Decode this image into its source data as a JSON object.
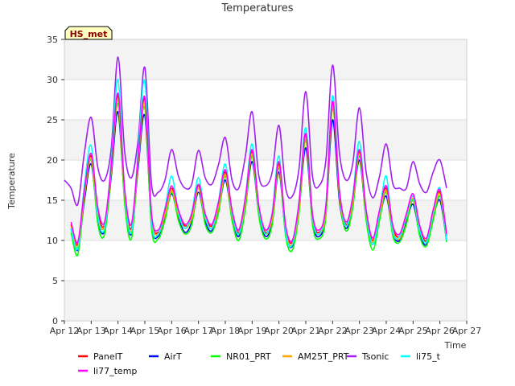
{
  "chart_data": {
    "type": "line",
    "title": "Temperatures",
    "xlabel": "Time",
    "ylabel": "Temperature",
    "site_tag": "HS_met",
    "ylim": [
      0,
      35
    ],
    "yticks": [
      0,
      5,
      10,
      15,
      20,
      25,
      30,
      35
    ],
    "xlim": [
      0,
      15
    ],
    "xticks": [
      {
        "x": 0,
        "label": "Apr 12"
      },
      {
        "x": 1,
        "label": "Apr 13"
      },
      {
        "x": 2,
        "label": "Apr 14"
      },
      {
        "x": 3,
        "label": "Apr 15"
      },
      {
        "x": 4,
        "label": "Apr 16"
      },
      {
        "x": 5,
        "label": "Apr 17"
      },
      {
        "x": 6,
        "label": "Apr 18"
      },
      {
        "x": 7,
        "label": "Apr 19"
      },
      {
        "x": 8,
        "label": "Apr 20"
      },
      {
        "x": 9,
        "label": "Apr 21"
      },
      {
        "x": 10,
        "label": "Apr 22"
      },
      {
        "x": 11,
        "label": "Apr 23"
      },
      {
        "x": 12,
        "label": "Apr 24"
      },
      {
        "x": 13,
        "label": "Apr 25"
      },
      {
        "x": 14,
        "label": "Apr 26"
      },
      {
        "x": 15,
        "label": "Apr 27"
      }
    ],
    "x_units": "days since Apr 12 00:00",
    "grid": true,
    "background_bands": "alternating light gray",
    "legend_placement": "bottom",
    "series": [
      {
        "name": "PanelT",
        "color": "#ff0000",
        "x": [
          0.25,
          0.5,
          0.75,
          1.0,
          1.25,
          1.5,
          1.75,
          2.0,
          2.25,
          2.5,
          2.75,
          3.0,
          3.25,
          3.5,
          3.75,
          4.0,
          4.25,
          4.5,
          4.75,
          5.0,
          5.25,
          5.5,
          5.75,
          6.0,
          6.25,
          6.5,
          6.75,
          7.0,
          7.25,
          7.5,
          7.75,
          8.0,
          8.25,
          8.5,
          8.75,
          9.0,
          9.25,
          9.5,
          9.75,
          10.0,
          10.25,
          10.5,
          10.75,
          11.0,
          11.25,
          11.5,
          11.75,
          12.0,
          12.25,
          12.5,
          12.75,
          13.0,
          13.25,
          13.5,
          13.75,
          14.0,
          14.25
        ],
        "y": [
          12.0,
          9.5,
          16.0,
          20.5,
          13.5,
          12.0,
          19.0,
          28.0,
          16.0,
          11.5,
          20.0,
          27.5,
          13.0,
          11.0,
          13.5,
          16.5,
          13.5,
          11.8,
          13.0,
          16.8,
          13.0,
          11.8,
          14.5,
          18.5,
          13.5,
          11.0,
          15.0,
          21.0,
          14.0,
          11.0,
          13.0,
          19.5,
          11.5,
          9.8,
          14.5,
          23.0,
          13.0,
          11.0,
          14.0,
          27.0,
          16.0,
          12.0,
          15.0,
          21.0,
          13.5,
          10.0,
          13.5,
          16.5,
          11.5,
          10.5,
          13.0,
          15.5,
          11.5,
          10.0,
          13.5,
          16.0,
          10.5
        ]
      },
      {
        "name": "AirT",
        "color": "#0000ff",
        "x": [
          0.25,
          0.5,
          0.75,
          1.0,
          1.25,
          1.5,
          1.75,
          2.0,
          2.25,
          2.5,
          2.75,
          3.0,
          3.25,
          3.5,
          3.75,
          4.0,
          4.25,
          4.5,
          4.75,
          5.0,
          5.25,
          5.5,
          5.75,
          6.0,
          6.25,
          6.5,
          6.75,
          7.0,
          7.25,
          7.5,
          7.75,
          8.0,
          8.25,
          8.5,
          8.75,
          9.0,
          9.25,
          9.5,
          9.75,
          10.0,
          10.25,
          10.5,
          10.75,
          11.0,
          11.25,
          11.5,
          11.75,
          12.0,
          12.25,
          12.5,
          12.75,
          13.0,
          13.25,
          13.5,
          13.75,
          14.0,
          14.25
        ],
        "y": [
          11.5,
          8.8,
          15.0,
          19.5,
          12.5,
          11.2,
          18.0,
          26.0,
          15.0,
          10.8,
          19.0,
          25.5,
          12.0,
          10.5,
          12.8,
          15.8,
          12.8,
          11.0,
          12.3,
          16.0,
          12.3,
          11.2,
          13.8,
          17.5,
          12.8,
          10.5,
          14.3,
          19.8,
          13.3,
          10.5,
          12.3,
          18.5,
          10.8,
          9.3,
          13.8,
          21.5,
          12.3,
          10.5,
          13.3,
          25.0,
          15.0,
          11.5,
          14.3,
          20.0,
          12.8,
          9.5,
          12.8,
          15.5,
          10.8,
          10.0,
          12.3,
          14.5,
          10.8,
          9.5,
          12.8,
          15.0,
          10.0
        ]
      },
      {
        "name": "NR01_PRT",
        "color": "#00ff00",
        "x": [
          0.25,
          0.5,
          0.75,
          1.0,
          1.25,
          1.5,
          1.75,
          2.0,
          2.25,
          2.5,
          2.75,
          3.0,
          3.25,
          3.5,
          3.75,
          4.0,
          4.25,
          4.5,
          4.75,
          5.0,
          5.25,
          5.5,
          5.75,
          6.0,
          6.25,
          6.5,
          6.75,
          7.0,
          7.25,
          7.5,
          7.75,
          8.0,
          8.25,
          8.5,
          8.75,
          9.0,
          9.25,
          9.5,
          9.75,
          10.0,
          10.25,
          10.5,
          10.75,
          11.0,
          11.25,
          11.5,
          11.75,
          12.0,
          12.25,
          12.5,
          12.75,
          13.0,
          13.25,
          13.5,
          13.75,
          14.0,
          14.25
        ],
        "y": [
          11.0,
          8.2,
          15.5,
          20.0,
          12.0,
          10.8,
          18.5,
          27.0,
          14.5,
          10.2,
          19.5,
          26.5,
          11.5,
          10.2,
          12.5,
          16.0,
          12.5,
          10.8,
          12.0,
          16.5,
          12.0,
          11.0,
          13.5,
          18.0,
          12.5,
          10.0,
          14.0,
          20.5,
          13.0,
          10.2,
          12.0,
          19.0,
          10.5,
          8.8,
          13.5,
          22.5,
          12.0,
          10.2,
          13.0,
          26.5,
          15.5,
          11.2,
          14.0,
          20.5,
          12.5,
          8.8,
          12.5,
          16.0,
          10.5,
          9.8,
          12.0,
          15.0,
          10.5,
          9.3,
          12.5,
          15.5,
          9.8
        ]
      },
      {
        "name": "AM25T_PRT",
        "color": "#ffa500",
        "x": [
          0.25,
          0.5,
          0.75,
          1.0,
          1.25,
          1.5,
          1.75,
          2.0,
          2.25,
          2.5,
          2.75,
          3.0,
          3.25,
          3.5,
          3.75,
          4.0,
          4.25,
          4.5,
          4.75,
          5.0,
          5.25,
          5.5,
          5.75,
          6.0,
          6.25,
          6.5,
          6.75,
          7.0,
          7.25,
          7.5,
          7.75,
          8.0,
          8.25,
          8.5,
          8.75,
          9.0,
          9.25,
          9.5,
          9.75,
          10.0,
          10.25,
          10.5,
          10.75,
          11.0,
          11.25,
          11.5,
          11.75,
          12.0,
          12.25,
          12.5,
          12.75,
          13.0,
          13.25,
          13.5,
          13.75,
          14.0,
          14.25
        ],
        "y": [
          11.8,
          9.2,
          15.8,
          20.2,
          13.0,
          11.8,
          18.8,
          27.5,
          15.5,
          11.2,
          19.8,
          27.0,
          12.8,
          10.8,
          13.2,
          16.2,
          13.2,
          11.5,
          12.8,
          16.5,
          12.8,
          11.5,
          14.2,
          18.2,
          13.2,
          10.8,
          14.8,
          20.8,
          13.8,
          10.8,
          12.8,
          19.2,
          11.2,
          9.5,
          14.2,
          22.8,
          12.8,
          10.8,
          13.8,
          26.8,
          15.8,
          11.8,
          14.8,
          20.8,
          13.2,
          9.8,
          13.2,
          16.2,
          11.2,
          10.2,
          12.8,
          15.2,
          11.2,
          9.8,
          13.2,
          15.8,
          10.2
        ]
      },
      {
        "name": "Tsonic",
        "color": "#a020f0",
        "x": [
          0.0,
          0.25,
          0.5,
          0.75,
          1.0,
          1.25,
          1.5,
          1.75,
          2.0,
          2.25,
          2.5,
          2.75,
          3.0,
          3.25,
          3.5,
          3.75,
          4.0,
          4.25,
          4.5,
          4.75,
          5.0,
          5.25,
          5.5,
          5.75,
          6.0,
          6.25,
          6.5,
          6.75,
          7.0,
          7.25,
          7.5,
          7.75,
          8.0,
          8.25,
          8.5,
          8.75,
          9.0,
          9.25,
          9.5,
          9.75,
          10.0,
          10.25,
          10.5,
          10.75,
          11.0,
          11.25,
          11.5,
          11.75,
          12.0,
          12.25,
          12.5,
          12.75,
          13.0,
          13.25,
          13.5,
          13.75,
          14.0,
          14.25
        ],
        "y": [
          17.5,
          16.5,
          14.5,
          21.0,
          25.3,
          19.0,
          17.5,
          21.5,
          32.8,
          21.0,
          17.8,
          22.5,
          31.5,
          17.0,
          16.0,
          17.5,
          21.3,
          18.0,
          16.5,
          17.0,
          21.2,
          17.8,
          17.0,
          19.5,
          22.8,
          17.5,
          16.5,
          20.5,
          26.0,
          18.0,
          16.8,
          18.5,
          24.3,
          16.5,
          15.5,
          19.0,
          28.5,
          18.0,
          16.8,
          20.0,
          31.8,
          21.0,
          17.5,
          19.5,
          26.5,
          18.5,
          15.3,
          18.0,
          22.0,
          17.0,
          16.5,
          16.5,
          19.8,
          17.0,
          16.0,
          18.5,
          20.0,
          16.5
        ]
      },
      {
        "name": "li75_t",
        "color": "#00ffff",
        "x": [
          0.25,
          0.5,
          0.75,
          1.0,
          1.25,
          1.5,
          1.75,
          2.0,
          2.25,
          2.5,
          2.75,
          3.0,
          3.25,
          3.5,
          3.75,
          4.0,
          4.25,
          4.5,
          4.75,
          5.0,
          5.25,
          5.5,
          5.75,
          6.0,
          6.25,
          6.5,
          6.75,
          7.0,
          7.25,
          7.5,
          7.75,
          8.0,
          8.25,
          8.5,
          8.75,
          9.0,
          9.25,
          9.5,
          9.75,
          10.0,
          10.25,
          10.5,
          10.75,
          11.0,
          11.25,
          11.5,
          11.75,
          12.0,
          12.25,
          12.5,
          12.75,
          13.0,
          13.25,
          13.5,
          13.75,
          14.0,
          14.25
        ],
        "y": [
          11.5,
          9.0,
          17.0,
          21.8,
          13.0,
          11.5,
          20.0,
          30.0,
          16.0,
          11.0,
          21.0,
          29.8,
          12.5,
          10.8,
          14.0,
          18.0,
          13.5,
          11.5,
          13.5,
          17.8,
          13.0,
          11.5,
          15.0,
          19.5,
          13.5,
          10.8,
          15.5,
          22.0,
          14.0,
          10.8,
          13.5,
          20.5,
          11.0,
          9.5,
          15.0,
          24.0,
          13.0,
          10.8,
          14.5,
          28.0,
          16.5,
          11.8,
          15.5,
          22.3,
          13.5,
          9.5,
          13.5,
          18.0,
          11.0,
          10.5,
          13.0,
          15.5,
          11.2,
          9.8,
          13.5,
          16.5,
          10.0
        ]
      },
      {
        "name": "li77_temp",
        "color": "#ff00ff",
        "x": [
          0.25,
          0.5,
          0.75,
          1.0,
          1.25,
          1.5,
          1.75,
          2.0,
          2.25,
          2.5,
          2.75,
          3.0,
          3.25,
          3.5,
          3.75,
          4.0,
          4.25,
          4.5,
          4.75,
          5.0,
          5.25,
          5.5,
          5.75,
          6.0,
          6.25,
          6.5,
          6.75,
          7.0,
          7.25,
          7.5,
          7.75,
          8.0,
          8.25,
          8.5,
          8.75,
          9.0,
          9.25,
          9.5,
          9.75,
          10.0,
          10.25,
          10.5,
          10.75,
          11.0,
          11.25,
          11.5,
          11.75,
          12.0,
          12.25,
          12.5,
          12.75,
          13.0,
          13.25,
          13.5,
          13.75,
          14.0,
          14.25
        ],
        "y": [
          12.3,
          9.8,
          16.3,
          20.8,
          14.0,
          12.3,
          19.3,
          28.3,
          16.3,
          12.0,
          20.3,
          27.8,
          13.3,
          11.3,
          13.8,
          16.8,
          13.8,
          12.0,
          13.3,
          17.0,
          13.3,
          12.0,
          14.8,
          18.8,
          13.8,
          11.3,
          15.3,
          21.3,
          14.3,
          11.3,
          13.3,
          19.8,
          11.8,
          10.0,
          14.8,
          23.3,
          13.3,
          11.3,
          14.3,
          27.3,
          16.3,
          12.3,
          15.3,
          21.3,
          13.8,
          10.3,
          13.8,
          16.8,
          11.8,
          10.8,
          13.3,
          15.8,
          11.8,
          10.3,
          13.8,
          16.3,
          10.8
        ]
      }
    ]
  }
}
